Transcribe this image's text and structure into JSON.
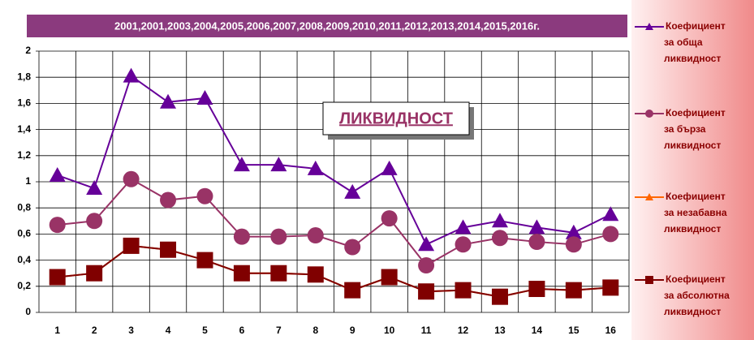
{
  "chart_data": {
    "type": "line",
    "title": "ЛИКВИДНОСТ",
    "subtitle": "2001,2001,2003,2004,2005,2006,2007,2008,2009,2010,2011,2012,2013,2014,2015,2016г.",
    "categories": [
      "1",
      "2",
      "3",
      "4",
      "5",
      "6",
      "7",
      "8",
      "9",
      "10",
      "11",
      "12",
      "13",
      "14",
      "15",
      "16"
    ],
    "series": [
      {
        "name": "Коефициент за обща ликвидност",
        "color": "#660099",
        "marker": "triangle",
        "values": [
          1.05,
          0.95,
          1.81,
          1.61,
          1.64,
          1.13,
          1.13,
          1.1,
          0.92,
          1.1,
          0.52,
          0.65,
          0.7,
          0.65,
          0.61,
          0.75
        ]
      },
      {
        "name": "Коефициент за бърза ликвидност",
        "color": "#993366",
        "marker": "circle",
        "values": [
          0.67,
          0.7,
          1.02,
          0.86,
          0.89,
          0.58,
          0.58,
          0.59,
          0.5,
          0.72,
          0.36,
          0.52,
          0.57,
          0.54,
          0.52,
          0.6
        ]
      },
      {
        "name": "Коефициент за незабавна ликвидност",
        "color": "#ff6600",
        "marker": "triangle",
        "values": [
          0.27,
          0.3,
          0.51,
          0.48,
          0.4,
          0.3,
          0.3,
          0.29,
          0.17,
          0.27,
          0.16,
          0.17,
          0.12,
          0.18,
          0.17,
          0.19
        ]
      },
      {
        "name": "Коефициент за абсолютна ликвидност",
        "color": "#800000",
        "marker": "square",
        "values": [
          0.27,
          0.3,
          0.51,
          0.48,
          0.4,
          0.3,
          0.3,
          0.29,
          0.17,
          0.27,
          0.16,
          0.17,
          0.12,
          0.18,
          0.17,
          0.19
        ]
      }
    ],
    "ylim": [
      0,
      2
    ],
    "yticks": [
      0,
      {
        "value": 0.2,
        "label": "0,2"
      },
      {
        "value": 0.4,
        "label": "0,4"
      },
      {
        "value": 0.6,
        "label": "0,6"
      },
      {
        "value": 0.8,
        "label": "0,8"
      },
      1,
      {
        "value": 1.2,
        "label": "1,2"
      },
      {
        "value": 1.4,
        "label": "1,4"
      },
      {
        "value": 1.6,
        "label": "1,6"
      },
      {
        "value": 1.8,
        "label": "1,8"
      },
      2
    ],
    "grid": true,
    "legend": "right"
  }
}
